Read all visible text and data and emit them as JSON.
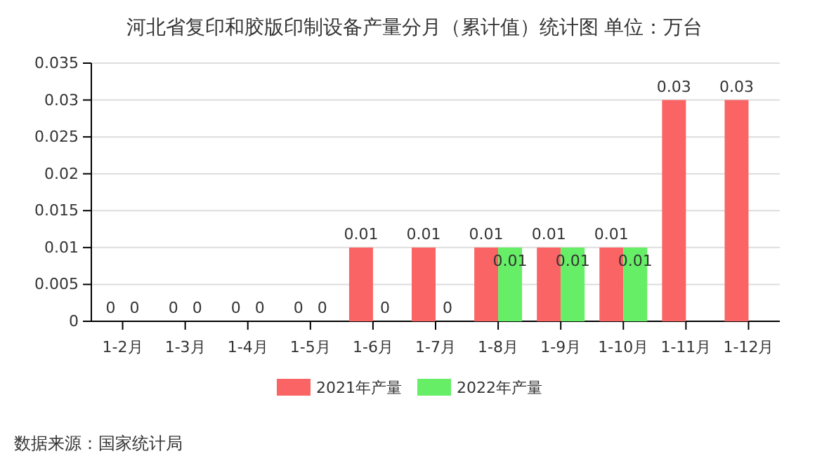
{
  "chart_data": {
    "type": "bar",
    "title": "河北省复印和胶版印制设备产量分月（累计值）统计图  单位：万台",
    "categories": [
      "1-2月",
      "1-3月",
      "1-4月",
      "1-5月",
      "1-6月",
      "1-7月",
      "1-8月",
      "1-9月",
      "1-10月",
      "1-11月",
      "1-12月"
    ],
    "series": [
      {
        "name": "2021年产量",
        "color": "#fa6464",
        "values": [
          0,
          0,
          0,
          0,
          0.01,
          0.01,
          0.01,
          0.01,
          0.01,
          0.03,
          0.03
        ]
      },
      {
        "name": "2022年产量",
        "color": "#66ee66",
        "values": [
          0,
          0,
          0,
          0,
          0,
          0,
          0.01,
          0.01,
          0.01,
          null,
          null
        ]
      }
    ],
    "ylim": [
      0,
      0.035
    ],
    "yticks": [
      0,
      0.005,
      0.01,
      0.015,
      0.02,
      0.025,
      0.03,
      0.035
    ],
    "grid": "y",
    "legend": "bottom",
    "data_labels": true,
    "annotations": [
      "数据来源：国家统计局"
    ]
  }
}
